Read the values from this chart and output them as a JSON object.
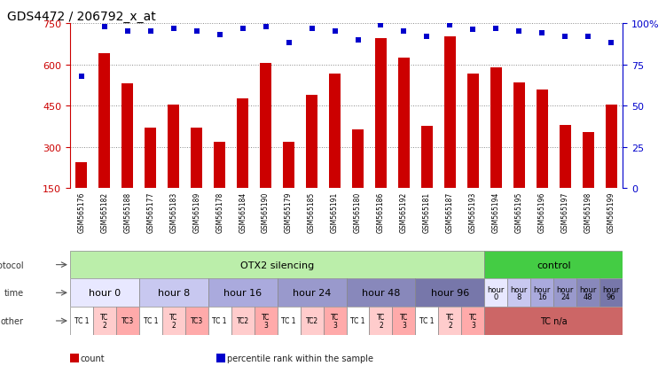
{
  "title": "GDS4472 / 206792_x_at",
  "samples": [
    "GSM565176",
    "GSM565182",
    "GSM565188",
    "GSM565177",
    "GSM565183",
    "GSM565189",
    "GSM565178",
    "GSM565184",
    "GSM565190",
    "GSM565179",
    "GSM565185",
    "GSM565191",
    "GSM565180",
    "GSM565186",
    "GSM565192",
    "GSM565181",
    "GSM565187",
    "GSM565193",
    "GSM565194",
    "GSM565195",
    "GSM565196",
    "GSM565197",
    "GSM565198",
    "GSM565199"
  ],
  "counts": [
    245,
    640,
    530,
    370,
    455,
    370,
    320,
    475,
    605,
    320,
    490,
    565,
    365,
    695,
    625,
    375,
    700,
    565,
    590,
    535,
    510,
    380,
    355,
    455
  ],
  "percentile": [
    68,
    98,
    95,
    95,
    97,
    95,
    93,
    97,
    98,
    88,
    97,
    95,
    90,
    99,
    95,
    92,
    99,
    96,
    97,
    95,
    94,
    92,
    92,
    88
  ],
  "bar_color": "#cc0000",
  "dot_color": "#0000cc",
  "left_yticks": [
    150,
    300,
    450,
    600,
    750
  ],
  "right_yticks": [
    0,
    25,
    50,
    75,
    100
  ],
  "ylim_left": [
    150,
    750
  ],
  "ylim_right": [
    0,
    100
  ],
  "sample_bg_color": "#dddddd",
  "protocol_row": {
    "otx2_label": "OTX2 silencing",
    "otx2_color": "#bbeeaa",
    "otx2_span": [
      0,
      18
    ],
    "control_label": "control",
    "control_color": "#44cc44",
    "control_span": [
      18,
      24
    ]
  },
  "time_row": {
    "groups": [
      {
        "label": "hour 0",
        "span": [
          0,
          3
        ],
        "color": "#e8e8ff"
      },
      {
        "label": "hour 8",
        "span": [
          3,
          6
        ],
        "color": "#c8c8f0"
      },
      {
        "label": "hour 16",
        "span": [
          6,
          9
        ],
        "color": "#aaaadd"
      },
      {
        "label": "hour 24",
        "span": [
          9,
          12
        ],
        "color": "#9999cc"
      },
      {
        "label": "hour 48",
        "span": [
          12,
          15
        ],
        "color": "#8888bb"
      },
      {
        "label": "hour 96",
        "span": [
          15,
          18
        ],
        "color": "#7777aa"
      },
      {
        "label": "hour\n0",
        "span": [
          18,
          19
        ],
        "color": "#e8e8ff"
      },
      {
        "label": "hour\n8",
        "span": [
          19,
          20
        ],
        "color": "#c8c8f0"
      },
      {
        "label": "hour\n16",
        "span": [
          20,
          21
        ],
        "color": "#aaaadd"
      },
      {
        "label": "hour\n24",
        "span": [
          21,
          22
        ],
        "color": "#9999cc"
      },
      {
        "label": "hour\n48",
        "span": [
          22,
          23
        ],
        "color": "#8888bb"
      },
      {
        "label": "hour\n96",
        "span": [
          23,
          24
        ],
        "color": "#7777aa"
      }
    ]
  },
  "other_row": {
    "tc_groups": [
      {
        "label": "TC 1",
        "span": [
          0,
          1
        ],
        "color": "#ffffff"
      },
      {
        "label": "TC\n2",
        "span": [
          1,
          2
        ],
        "color": "#ffcccc"
      },
      {
        "label": "TC3",
        "span": [
          2,
          3
        ],
        "color": "#ffaaaa"
      },
      {
        "label": "TC 1",
        "span": [
          3,
          4
        ],
        "color": "#ffffff"
      },
      {
        "label": "TC\n2",
        "span": [
          4,
          5
        ],
        "color": "#ffcccc"
      },
      {
        "label": "TC3",
        "span": [
          5,
          6
        ],
        "color": "#ffaaaa"
      },
      {
        "label": "TC 1",
        "span": [
          6,
          7
        ],
        "color": "#ffffff"
      },
      {
        "label": "TC2",
        "span": [
          7,
          8
        ],
        "color": "#ffcccc"
      },
      {
        "label": "TC\n3",
        "span": [
          8,
          9
        ],
        "color": "#ffaaaa"
      },
      {
        "label": "TC 1",
        "span": [
          9,
          10
        ],
        "color": "#ffffff"
      },
      {
        "label": "TC2",
        "span": [
          10,
          11
        ],
        "color": "#ffcccc"
      },
      {
        "label": "TC\n3",
        "span": [
          11,
          12
        ],
        "color": "#ffaaaa"
      },
      {
        "label": "TC 1",
        "span": [
          12,
          13
        ],
        "color": "#ffffff"
      },
      {
        "label": "TC\n2",
        "span": [
          13,
          14
        ],
        "color": "#ffcccc"
      },
      {
        "label": "TC\n3",
        "span": [
          14,
          15
        ],
        "color": "#ffaaaa"
      },
      {
        "label": "TC 1",
        "span": [
          15,
          16
        ],
        "color": "#ffffff"
      },
      {
        "label": "TC\n2",
        "span": [
          16,
          17
        ],
        "color": "#ffcccc"
      },
      {
        "label": "TC\n3",
        "span": [
          17,
          18
        ],
        "color": "#ffaaaa"
      },
      {
        "label": "TC n/a",
        "span": [
          18,
          24
        ],
        "color": "#cc6666"
      }
    ]
  },
  "row_label_color": "#333333",
  "bg_color": "#ffffff",
  "grid_color": "#888888",
  "legend_items": [
    {
      "label": "count",
      "color": "#cc0000",
      "marker": "s"
    },
    {
      "label": "percentile rank within the sample",
      "color": "#0000cc",
      "marker": "s"
    }
  ]
}
